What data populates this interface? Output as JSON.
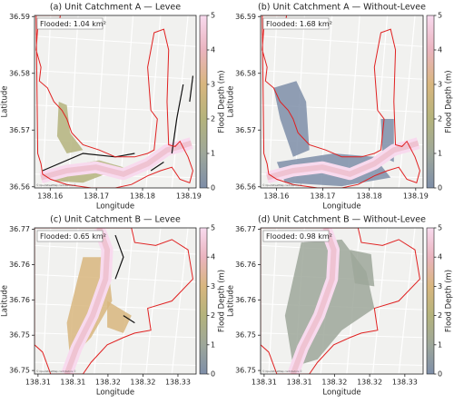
{
  "chart_data": [
    {
      "type": "map",
      "title": "(a) Unit Catchment A — Levee",
      "annotation": "Flooded: 1.04 km²",
      "attribution": "© OpenStreetMap contributors ©",
      "xlabel": "Longitude",
      "ylabel": "Latitude",
      "xlim": [
        138.1566,
        138.1916
      ],
      "ylim": [
        36.5598,
        36.5902
      ],
      "xticks": [
        138.16,
        138.17,
        138.18,
        138.19
      ],
      "yticks": [
        36.56,
        36.57,
        36.58,
        36.59
      ],
      "colorbar": {
        "label": "Flood Depth (m)",
        "lim": [
          0,
          5
        ],
        "ticks": [
          0,
          1,
          2,
          3,
          4,
          5
        ],
        "colors": [
          "#7e8ea8",
          "#9ea79a",
          "#b4b37c",
          "#d8b67e",
          "#eab4bf",
          "#f8daee"
        ]
      }
    },
    {
      "type": "map",
      "title": "(b) Unit Catchment A — Without-Levee",
      "annotation": "Flooded: 1.68 km²",
      "attribution": "© OpenStreetMap contributors ©",
      "xlabel": "Longitude",
      "ylabel": "Latitude",
      "xlim": [
        138.1566,
        138.1916
      ],
      "ylim": [
        36.5598,
        36.5902
      ],
      "xticks": [
        138.16,
        138.17,
        138.18,
        138.19
      ],
      "yticks": [
        36.56,
        36.57,
        36.58,
        36.59
      ],
      "colorbar": {
        "label": "Flood Depth (m)",
        "lim": [
          0,
          5
        ],
        "ticks": [
          0,
          1,
          2,
          3,
          4,
          5
        ],
        "colors": [
          "#7e8ea8",
          "#9ea79a",
          "#b4b37c",
          "#d8b67e",
          "#eab4bf",
          "#f8daee"
        ]
      }
    },
    {
      "type": "map",
      "title": "(c) Unit Catchment B — Levee",
      "annotation": "Flooded: 0.65 km²",
      "attribution": "© OpenStreetMap contributors ©",
      "xlabel": "Longitude",
      "ylabel": "Latitude",
      "xlim": [
        138.3095,
        138.3326
      ],
      "ylim": [
        36.7495,
        36.7702
      ],
      "xticks": [
        138.31,
        {
          "value": 138.315,
          "label": "138.31"
        },
        138.32,
        {
          "value": 138.325,
          "label": "138.32"
        },
        138.33
      ],
      "yticks": [
        36.75,
        {
          "value": 36.755,
          "label": "36.75"
        },
        36.76,
        {
          "value": 36.765,
          "label": "36.76"
        },
        36.77
      ],
      "colorbar": {
        "label": "Flood Depth (m)",
        "lim": [
          0,
          5
        ],
        "ticks": [
          0,
          1,
          2,
          3,
          4,
          5
        ],
        "colors": [
          "#7e8ea8",
          "#9ea79a",
          "#b4b37c",
          "#d8b67e",
          "#eab4bf",
          "#f8daee"
        ]
      }
    },
    {
      "type": "map",
      "title": "(d) Unit Catchment B — Without-Levee",
      "annotation": "Flooded: 0.98 km²",
      "attribution": "© OpenStreetMap contributors ©",
      "xlabel": "Longitude",
      "ylabel": "Latitude",
      "xlim": [
        138.3095,
        138.3326
      ],
      "ylim": [
        36.7495,
        36.7702
      ],
      "xticks": [
        138.31,
        {
          "value": 138.315,
          "label": "138.31"
        },
        138.32,
        {
          "value": 138.325,
          "label": "138.32"
        },
        138.33
      ],
      "yticks": [
        36.75,
        {
          "value": 36.755,
          "label": "36.75"
        },
        36.76,
        {
          "value": 36.765,
          "label": "36.76"
        },
        36.77
      ],
      "colorbar": {
        "label": "Flood Depth (m)",
        "lim": [
          0,
          5
        ],
        "ticks": [
          0,
          1,
          2,
          3,
          4,
          5
        ],
        "colors": [
          "#7e8ea8",
          "#9ea79a",
          "#b4b37c",
          "#d8b67e",
          "#eab4bf",
          "#f8daee"
        ]
      }
    }
  ]
}
